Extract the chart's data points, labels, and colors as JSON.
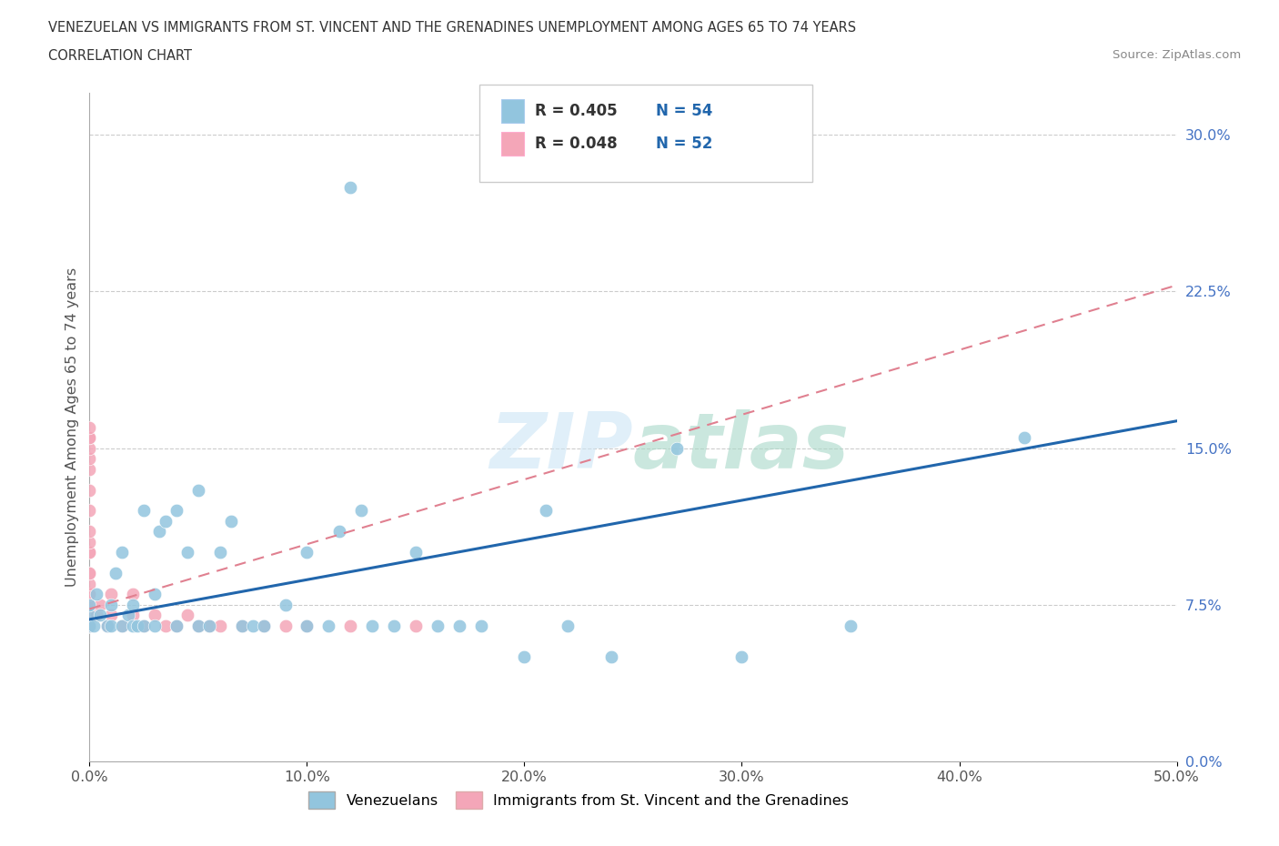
{
  "title_line1": "VENEZUELAN VS IMMIGRANTS FROM ST. VINCENT AND THE GRENADINES UNEMPLOYMENT AMONG AGES 65 TO 74 YEARS",
  "title_line2": "CORRELATION CHART",
  "source": "Source: ZipAtlas.com",
  "ylabel": "Unemployment Among Ages 65 to 74 years",
  "xlim": [
    0.0,
    0.5
  ],
  "ylim": [
    0.0,
    0.32
  ],
  "xticks": [
    0.0,
    0.1,
    0.2,
    0.3,
    0.4,
    0.5
  ],
  "xticklabels": [
    "0.0%",
    "10.0%",
    "20.0%",
    "30.0%",
    "40.0%",
    "50.0%"
  ],
  "yticks": [
    0.0,
    0.075,
    0.15,
    0.225,
    0.3
  ],
  "yticklabels": [
    "0.0%",
    "7.5%",
    "15.0%",
    "22.5%",
    "30.0%"
  ],
  "blue_color": "#92c5de",
  "pink_color": "#f4a6b8",
  "blue_line_color": "#2166ac",
  "pink_line_color": "#e08090",
  "watermark": "ZIPatlas",
  "ven_x": [
    0.0,
    0.0,
    0.0,
    0.002,
    0.003,
    0.005,
    0.008,
    0.01,
    0.01,
    0.012,
    0.015,
    0.015,
    0.018,
    0.02,
    0.02,
    0.022,
    0.025,
    0.025,
    0.03,
    0.03,
    0.032,
    0.035,
    0.04,
    0.04,
    0.045,
    0.05,
    0.05,
    0.055,
    0.06,
    0.065,
    0.07,
    0.075,
    0.08,
    0.09,
    0.1,
    0.1,
    0.11,
    0.115,
    0.12,
    0.125,
    0.13,
    0.14,
    0.15,
    0.16,
    0.17,
    0.18,
    0.2,
    0.21,
    0.22,
    0.24,
    0.27,
    0.3,
    0.35,
    0.43
  ],
  "ven_y": [
    0.065,
    0.07,
    0.075,
    0.065,
    0.08,
    0.07,
    0.065,
    0.075,
    0.065,
    0.09,
    0.1,
    0.065,
    0.07,
    0.075,
    0.065,
    0.065,
    0.065,
    0.12,
    0.065,
    0.08,
    0.11,
    0.115,
    0.065,
    0.12,
    0.1,
    0.065,
    0.13,
    0.065,
    0.1,
    0.115,
    0.065,
    0.065,
    0.065,
    0.075,
    0.065,
    0.1,
    0.065,
    0.11,
    0.275,
    0.12,
    0.065,
    0.065,
    0.1,
    0.065,
    0.065,
    0.065,
    0.05,
    0.12,
    0.065,
    0.05,
    0.15,
    0.05,
    0.065,
    0.155
  ],
  "svg_x": [
    0.0,
    0.0,
    0.0,
    0.0,
    0.0,
    0.0,
    0.0,
    0.0,
    0.0,
    0.0,
    0.0,
    0.0,
    0.0,
    0.0,
    0.0,
    0.0,
    0.0,
    0.0,
    0.0,
    0.0,
    0.0,
    0.0,
    0.0,
    0.0,
    0.0,
    0.0,
    0.0,
    0.0,
    0.0,
    0.0,
    0.003,
    0.005,
    0.008,
    0.01,
    0.01,
    0.015,
    0.02,
    0.02,
    0.025,
    0.03,
    0.035,
    0.04,
    0.045,
    0.05,
    0.055,
    0.06,
    0.07,
    0.08,
    0.09,
    0.1,
    0.12,
    0.15
  ],
  "svg_y": [
    0.065,
    0.07,
    0.07,
    0.075,
    0.075,
    0.08,
    0.08,
    0.085,
    0.09,
    0.09,
    0.1,
    0.1,
    0.105,
    0.11,
    0.12,
    0.13,
    0.14,
    0.145,
    0.15,
    0.155,
    0.155,
    0.16,
    0.065,
    0.065,
    0.065,
    0.065,
    0.065,
    0.065,
    0.065,
    0.065,
    0.07,
    0.075,
    0.065,
    0.07,
    0.08,
    0.065,
    0.07,
    0.08,
    0.065,
    0.07,
    0.065,
    0.065,
    0.07,
    0.065,
    0.065,
    0.065,
    0.065,
    0.065,
    0.065,
    0.065,
    0.065,
    0.065
  ],
  "ven_line_x0": 0.0,
  "ven_line_y0": 0.068,
  "ven_line_x1": 0.5,
  "ven_line_y1": 0.163,
  "svg_line_x0": 0.0,
  "svg_line_y0": 0.073,
  "svg_line_x1": 0.5,
  "svg_line_y1": 0.228
}
